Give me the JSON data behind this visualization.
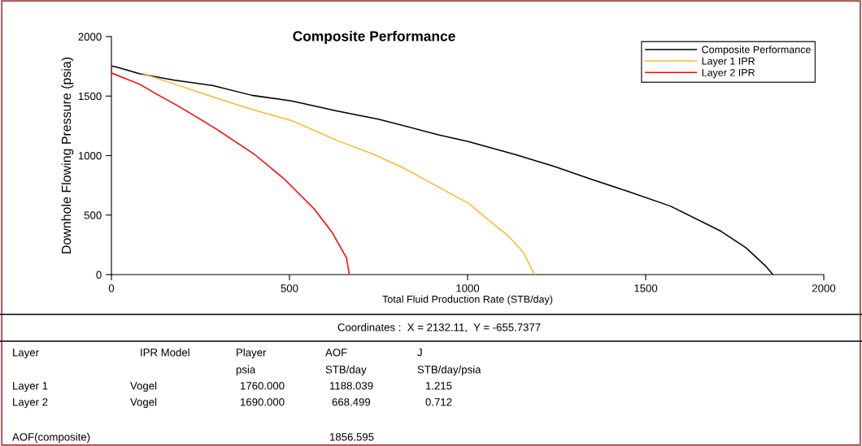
{
  "chart_data": {
    "type": "line",
    "title": "Composite Performance",
    "xlabel": "Total Fluid Production Rate (STB/day)",
    "ylabel": "Downhole Flowing Pressure (psia)",
    "xlim": [
      0,
      2000
    ],
    "xticks": [
      0,
      500,
      1000,
      1500,
      2000
    ],
    "ylim": [
      0,
      2000
    ],
    "yticks": [
      0,
      500,
      1000,
      1500,
      2000
    ],
    "grid": false,
    "legend": "top right",
    "marker": "none",
    "line_style": "solid",
    "series": [
      {
        "name": "Composite Performance",
        "color": "#000000",
        "x": [
          0,
          12,
          32,
          79,
          174,
          284,
          395,
          506,
          632,
          750,
          916,
          1002,
          1136,
          1246,
          1348,
          1443,
          1569,
          1711,
          1782,
          1837,
          1857
        ],
        "values": [
          1753,
          1746,
          1729,
          1687,
          1635,
          1588,
          1506,
          1459,
          1376,
          1306,
          1176,
          1118,
          1007,
          906,
          800,
          706,
          576,
          365,
          224,
          71,
          0
        ]
      },
      {
        "name": "Layer 1 IPR",
        "color": "#ffb732",
        "x": [
          87,
          190,
          300,
          395,
          506,
          632,
          735,
          821,
          876,
          1002,
          1073,
          1113,
          1156,
          1188
        ],
        "values": [
          1689,
          1588,
          1478,
          1388,
          1294,
          1129,
          1012,
          894,
          805,
          600,
          424,
          329,
          188,
          0
        ]
      },
      {
        "name": "Layer 2 IPR",
        "color": "#ff0000",
        "x": [
          0,
          0,
          79,
          126,
          190,
          292,
          403,
          482,
          569,
          620,
          660,
          668
        ],
        "values": [
          1745,
          1694,
          1600,
          1518,
          1412,
          1228,
          1007,
          812,
          553,
          353,
          141,
          0
        ]
      }
    ],
    "annotations": [
      "Coordinates :  X = 2132.11,  Y = -655.7377",
      "Layer",
      "IPR Model",
      "Player",
      "AOF",
      "J",
      "psia",
      "STB/day",
      "STB/day/psia",
      "Layer 1",
      "Vogel",
      "1760.000",
      "1188.039",
      "1.215",
      "Layer 2",
      "Vogel",
      "1690.000",
      "668.499",
      "0.712",
      "AOF(composite)",
      "1856.595"
    ]
  }
}
